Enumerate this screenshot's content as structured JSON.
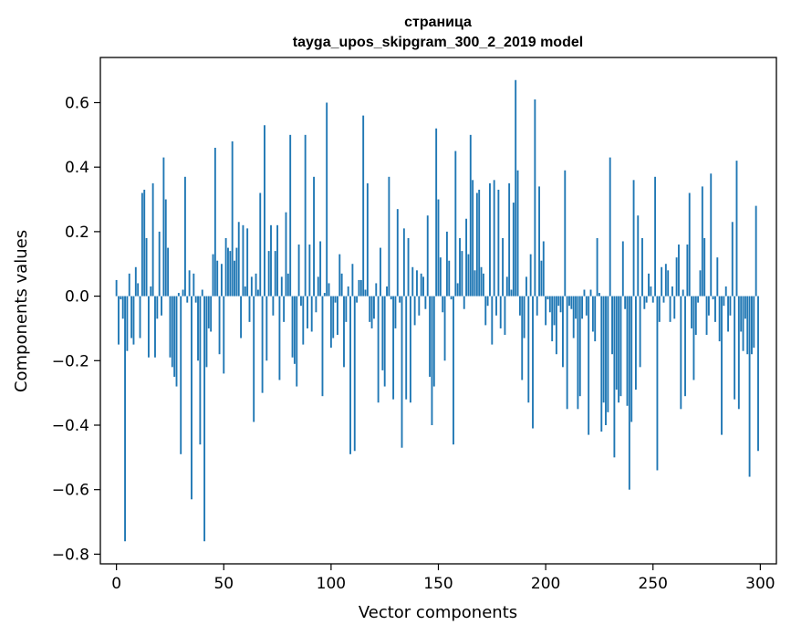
{
  "chart_data": {
    "type": "bar",
    "title": "страница",
    "subtitle": "tayga_upos_skipgram_300_2_2019 model",
    "xlabel": "Vector components",
    "ylabel": "Components values",
    "xlim": [
      -7.5,
      307.5
    ],
    "ylim": [
      -0.83,
      0.74
    ],
    "x_ticks": [
      0,
      50,
      100,
      150,
      200,
      250,
      300
    ],
    "y_ticks": [
      -0.8,
      -0.6,
      -0.4,
      -0.2,
      0.0,
      0.2,
      0.4,
      0.6
    ],
    "x_tick_labels": [
      "0",
      "50",
      "100",
      "150",
      "200",
      "250",
      "300"
    ],
    "y_tick_labels": [
      "−0.8",
      "−0.6",
      "−0.4",
      "−0.2",
      "0.0",
      "0.2",
      "0.4",
      "0.6"
    ],
    "grid": false,
    "bar_color": "#1f77b4",
    "categories_range": [
      0,
      299
    ],
    "values": [
      0.05,
      -0.15,
      -0.01,
      -0.07,
      -0.76,
      -0.17,
      0.07,
      -0.13,
      -0.15,
      0.09,
      0.04,
      -0.13,
      0.32,
      0.33,
      0.18,
      -0.19,
      0.03,
      0.35,
      -0.19,
      -0.07,
      0.2,
      -0.06,
      0.43,
      0.3,
      0.15,
      -0.19,
      -0.22,
      -0.25,
      -0.28,
      0.01,
      -0.49,
      0.02,
      0.37,
      -0.02,
      0.08,
      -0.63,
      0.07,
      -0.02,
      -0.2,
      -0.46,
      0.02,
      -0.76,
      -0.22,
      -0.1,
      -0.11,
      0.13,
      0.46,
      0.11,
      -0.18,
      0.1,
      -0.24,
      0.18,
      0.15,
      0.14,
      0.48,
      0.11,
      0.15,
      0.23,
      -0.13,
      0.22,
      0.03,
      0.21,
      -0.08,
      0.06,
      -0.39,
      0.07,
      0.02,
      0.32,
      -0.3,
      0.53,
      -0.2,
      0.14,
      0.22,
      -0.06,
      0.14,
      0.22,
      -0.26,
      0.06,
      -0.08,
      0.26,
      0.07,
      0.5,
      -0.19,
      -0.21,
      -0.28,
      0.16,
      -0.03,
      -0.15,
      0.5,
      -0.1,
      0.16,
      -0.11,
      0.37,
      -0.05,
      0.06,
      0.17,
      -0.31,
      0.01,
      0.6,
      0.04,
      -0.16,
      -0.13,
      -0.02,
      -0.12,
      0.13,
      0.07,
      -0.22,
      -0.08,
      0.03,
      -0.49,
      0.1,
      -0.48,
      -0.02,
      0.05,
      0.05,
      0.56,
      0.02,
      0.35,
      -0.08,
      -0.1,
      -0.07,
      0.04,
      -0.33,
      0.15,
      -0.23,
      -0.28,
      0.03,
      0.37,
      -0.01,
      -0.32,
      -0.1,
      0.27,
      -0.02,
      -0.47,
      0.21,
      -0.32,
      0.18,
      -0.33,
      0.09,
      -0.09,
      0.08,
      -0.06,
      0.07,
      0.06,
      -0.04,
      0.25,
      -0.25,
      -0.4,
      -0.28,
      0.52,
      0.3,
      0.12,
      -0.05,
      -0.2,
      0.2,
      0.11,
      -0.01,
      -0.46,
      0.45,
      0.04,
      0.18,
      0.14,
      -0.04,
      0.24,
      0.13,
      0.5,
      0.36,
      0.08,
      0.32,
      0.33,
      0.09,
      0.07,
      -0.09,
      -0.03,
      0.35,
      -0.15,
      0.36,
      -0.06,
      0.33,
      -0.1,
      0.18,
      -0.12,
      0.06,
      0.35,
      0.02,
      0.29,
      0.67,
      0.39,
      -0.06,
      -0.26,
      -0.13,
      0.06,
      -0.33,
      0.13,
      -0.41,
      0.61,
      -0.06,
      0.34,
      0.11,
      0.17,
      -0.09,
      -0.01,
      -0.05,
      -0.14,
      -0.09,
      -0.18,
      -0.03,
      -0.05,
      -0.22,
      0.39,
      -0.35,
      -0.03,
      -0.04,
      -0.13,
      -0.07,
      -0.35,
      -0.31,
      -0.07,
      0.02,
      -0.06,
      -0.43,
      0.02,
      -0.11,
      -0.14,
      0.18,
      0.01,
      -0.42,
      -0.33,
      -0.4,
      -0.36,
      0.43,
      -0.18,
      -0.5,
      -0.29,
      -0.33,
      -0.31,
      0.17,
      -0.04,
      -0.34,
      -0.6,
      -0.39,
      0.36,
      -0.29,
      0.25,
      -0.22,
      0.18,
      -0.04,
      -0.02,
      0.07,
      0.03,
      -0.02,
      0.37,
      -0.54,
      -0.08,
      0.09,
      -0.02,
      0.1,
      0.08,
      -0.08,
      0.03,
      -0.07,
      0.12,
      0.16,
      -0.35,
      0.02,
      -0.31,
      0.16,
      0.32,
      -0.1,
      -0.26,
      -0.12,
      -0.02,
      0.08,
      0.34,
      0.18,
      -0.12,
      -0.06,
      0.38,
      -0.01,
      -0.08,
      0.12,
      -0.14,
      -0.43,
      -0.03,
      0.03,
      -0.11,
      -0.06,
      0.23,
      -0.32,
      0.42,
      -0.35,
      -0.11,
      -0.17,
      -0.07,
      -0.18,
      -0.56,
      -0.18,
      -0.16,
      0.28,
      -0.48
    ]
  }
}
